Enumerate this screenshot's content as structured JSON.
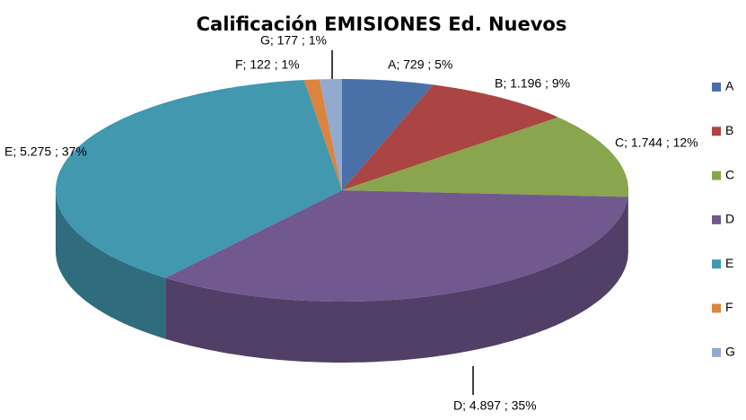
{
  "chart_data": {
    "type": "pie3d",
    "title": "Calificación EMISIONES Ed. Nuevos",
    "categories": [
      "A",
      "B",
      "C",
      "D",
      "E",
      "F",
      "G"
    ],
    "values": [
      729,
      1196,
      1744,
      4897,
      5275,
      122,
      177
    ],
    "value_labels": [
      "A; 729 ; 5%",
      "B; 1.196 ; 9%",
      "C; 1.744 ; 12%",
      "D; 4.897 ; 35%",
      "E; 5.275 ; 37%",
      "F; 122 ; 1%",
      "G; 177 ; 1%"
    ],
    "colors": [
      "#4a70a8",
      "#aa4543",
      "#89a54e",
      "#71588f",
      "#4198af",
      "#db843d",
      "#93a9cf"
    ],
    "legend": "right"
  }
}
